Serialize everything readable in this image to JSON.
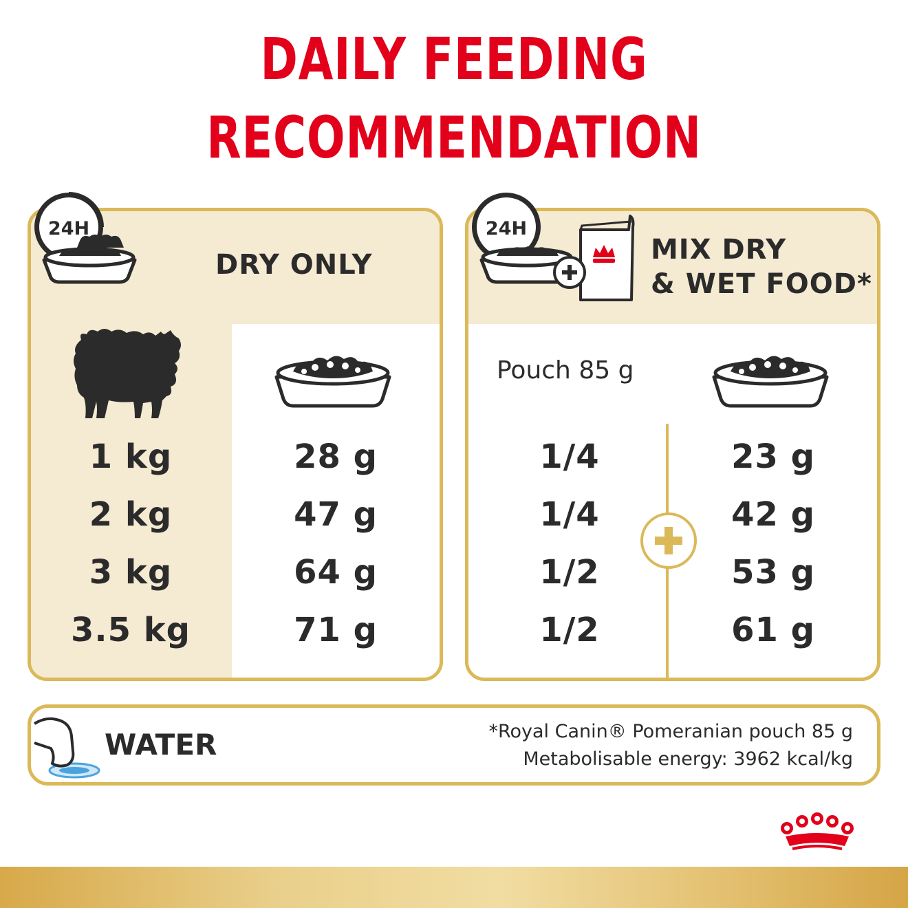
{
  "title": {
    "line1": "DAILY FEEDING",
    "line2": "RECOMMENDATION"
  },
  "dry_panel": {
    "clock_label": "24H",
    "heading": "DRY ONLY",
    "rows": [
      {
        "weight": "1 kg",
        "dry": "28 g"
      },
      {
        "weight": "2 kg",
        "dry": "47 g"
      },
      {
        "weight": "3 kg",
        "dry": "64 g"
      },
      {
        "weight": "3.5 kg",
        "dry": "71 g"
      }
    ]
  },
  "mix_panel": {
    "clock_label": "24H",
    "heading_line1": "MIX DRY",
    "heading_line2": "& WET FOOD*",
    "pouch_label": "Pouch 85 g",
    "rows": [
      {
        "pouch": "1/4",
        "dry": "23 g"
      },
      {
        "pouch": "1/4",
        "dry": "42 g"
      },
      {
        "pouch": "1/2",
        "dry": "53 g"
      },
      {
        "pouch": "1/2",
        "dry": "61 g"
      }
    ]
  },
  "water": {
    "label": "WATER",
    "note_line1": "*Royal Canin® Pomeranian pouch 85 g",
    "note_line2": "Metabolisable energy: 3962 kcal/kg"
  },
  "colors": {
    "brand_red": "#e2001a",
    "gold": "#dbb959",
    "cream": "#f5ead2",
    "text": "#2b2b2b",
    "water_blue": "#4aa3df"
  },
  "icons": [
    "clock-24h-icon",
    "food-bowl-icon",
    "dog-silhouette-icon",
    "wet-food-pouch-icon",
    "plus-icon",
    "water-bowl-icon",
    "crown-logo-icon"
  ]
}
